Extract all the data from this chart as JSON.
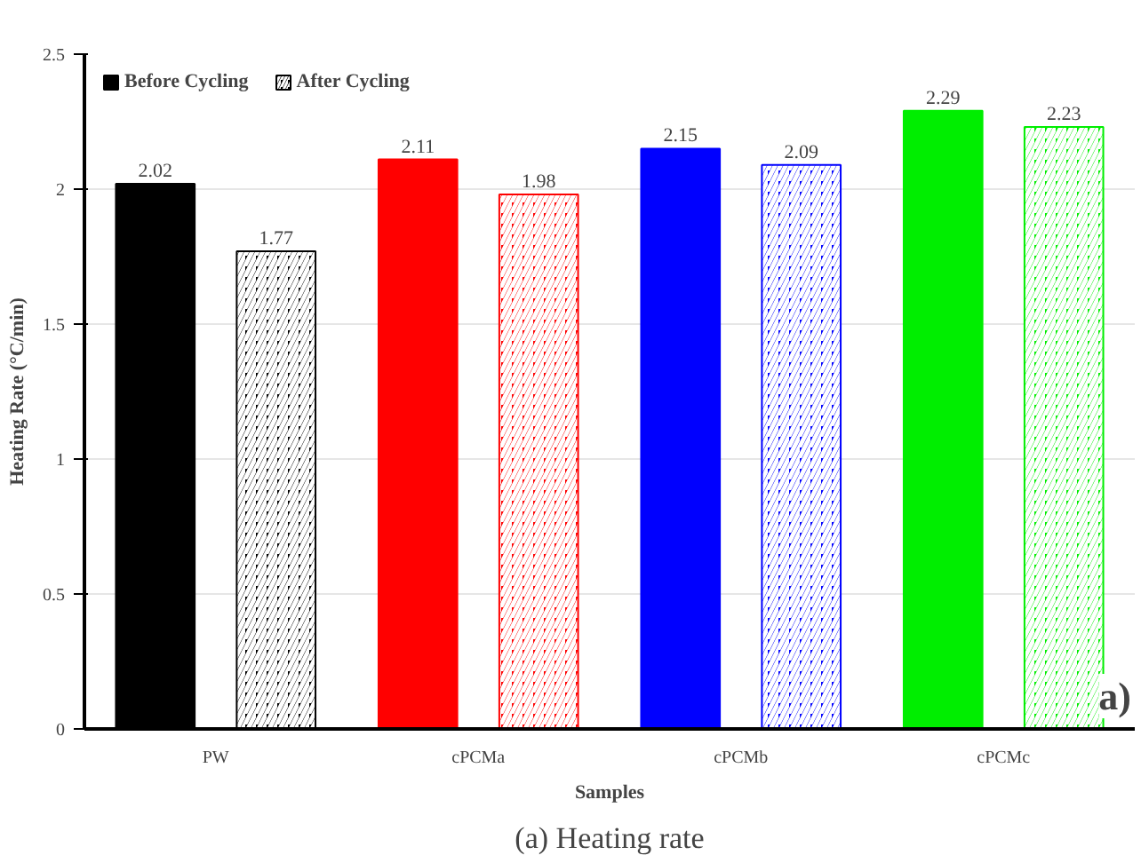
{
  "chart_data": {
    "type": "bar",
    "xlabel": "Samples",
    "ylabel": "Heating Rate (°C/min)",
    "categories": [
      "PW",
      "cPCMa",
      "cPCMb",
      "cPCMc"
    ],
    "series": [
      {
        "name": "Before Cycling",
        "color": "#000000",
        "colors": [
          "#000000",
          "#ff0000",
          "#0000ff",
          "#00ee00"
        ],
        "values": [
          2.02,
          2.11,
          2.15,
          2.29
        ]
      },
      {
        "name": "After Cycling",
        "color": "#000000",
        "colors": [
          "#000000",
          "#ff0000",
          "#0000ff",
          "#00ee00"
        ],
        "values": [
          1.77,
          1.98,
          2.09,
          2.23
        ]
      }
    ],
    "ylim": [
      0,
      2.5
    ],
    "yticks": [
      0,
      0.5,
      1,
      1.5,
      2,
      2.5
    ],
    "grid": "y",
    "legend": "top left",
    "data_labels": true,
    "annotations": [
      "a)",
      "(a) Heating rate"
    ]
  }
}
